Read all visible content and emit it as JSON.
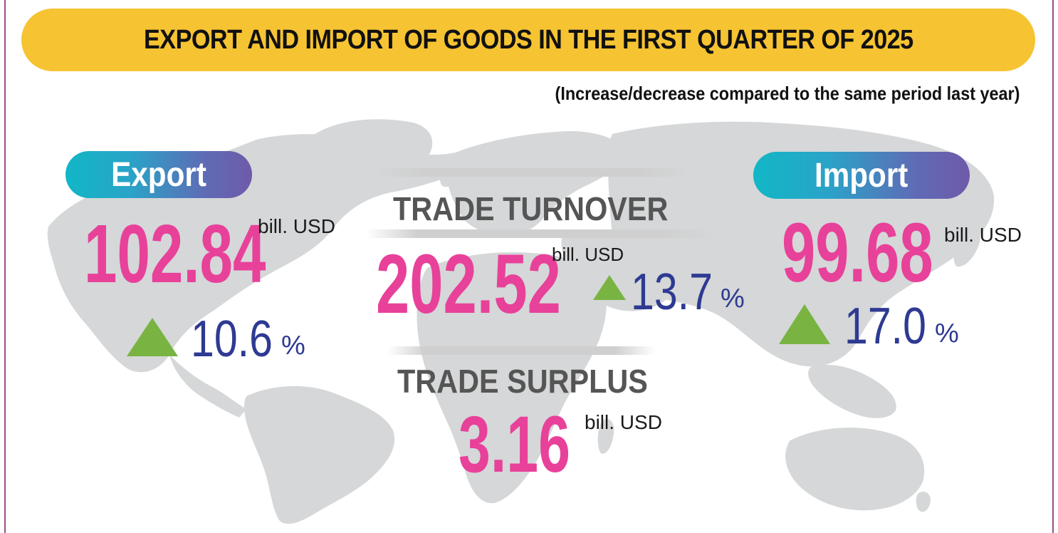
{
  "title": "EXPORT AND IMPORT OF GOODS IN THE FIRST QUARTER OF 2025",
  "subtitle": "(Increase/decrease compared to the same period last year)",
  "colors": {
    "banner": "#f6c332",
    "value": "#e8419a",
    "percent": "#2e3a92",
    "increase_arrow": "#79b442",
    "map": "#d5d7d8",
    "pill_gradient_start": "#11b7c6",
    "pill_gradient_end": "#6f5aa9",
    "frame": "#9c4b86"
  },
  "export": {
    "label": "Export",
    "value": "102.84",
    "unit": "bill. USD",
    "change": "10.6",
    "change_unit": "%",
    "direction_icon": "triangle-up-icon"
  },
  "turnover": {
    "label": "TRADE TURNOVER",
    "value": "202.52",
    "unit": "bill. USD",
    "change": "13.7",
    "change_unit": "%",
    "direction_icon": "triangle-up-icon"
  },
  "import": {
    "label": "Import",
    "value": "99.68",
    "unit": "bill. USD",
    "change": "17.0",
    "change_unit": "%",
    "direction_icon": "triangle-up-icon"
  },
  "surplus": {
    "label": "TRADE SURPLUS",
    "value": "3.16",
    "unit": "bill. USD"
  },
  "background_icon": "world-map-icon"
}
